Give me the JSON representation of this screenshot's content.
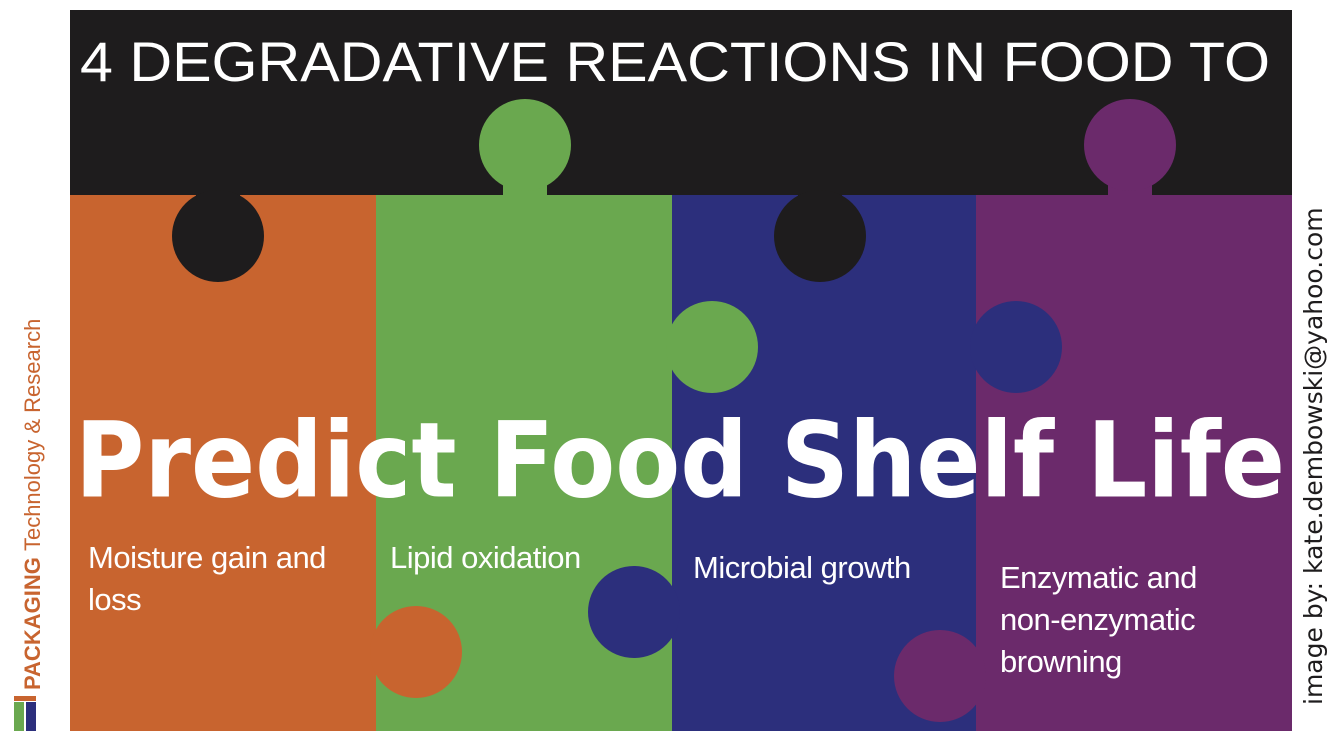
{
  "header": {
    "title": "4 DEGRADATIVE REACTIONS IN FOOD TO"
  },
  "headline": "Predict Food Shelf Life",
  "pieces": [
    {
      "label": "Moisture gain and loss"
    },
    {
      "label": "Lipid oxidation"
    },
    {
      "label": "Microbial growth"
    },
    {
      "label": "Enzymatic and non-enzymatic browning"
    }
  ],
  "sidebar": {
    "brand": "PACKAGING",
    "subtitle": "Technology & Research"
  },
  "credit": "image by: kate.dembowski@yahoo.com"
}
